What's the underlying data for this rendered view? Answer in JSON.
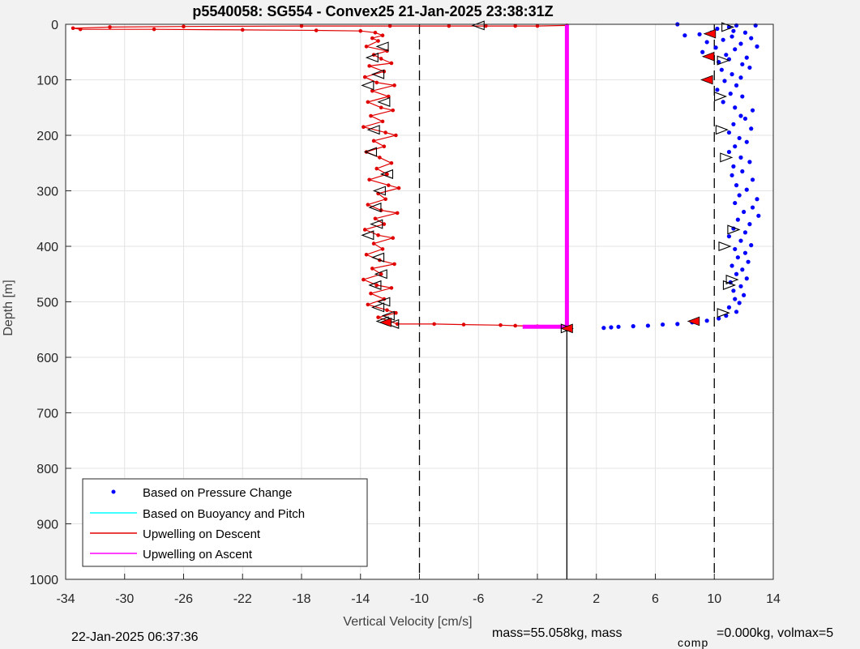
{
  "chart_data": {
    "type": "scatter",
    "title": "p5540058: SG554 - Convex25 21-Jan-2025 23:38:31Z",
    "xlabel": "Vertical Velocity [cm/s]",
    "ylabel": "Depth [m]",
    "xlim": [
      -34,
      14
    ],
    "ylim": [
      0,
      1000
    ],
    "y_reversed": true,
    "x_ticks": [
      -34,
      -30,
      -26,
      -22,
      -18,
      -14,
      -10,
      -6,
      -2,
      2,
      6,
      10,
      14
    ],
    "y_ticks": [
      0,
      100,
      200,
      300,
      400,
      500,
      600,
      700,
      800,
      900,
      1000
    ],
    "grid": true,
    "legend_position": "bottom-left",
    "reference_lines": {
      "dashed_x": [
        -10,
        10
      ],
      "solid_x": 0,
      "solid_depth_range": [
        545,
        1000
      ]
    },
    "series": [
      {
        "name": "Based on Pressure Change",
        "color": "#0000ff",
        "kind": "dots",
        "points": [
          [
            7.5,
            0
          ],
          [
            11.5,
            2
          ],
          [
            12.8,
            2
          ],
          [
            11,
            5
          ],
          [
            10.2,
            8
          ],
          [
            11.3,
            12
          ],
          [
            9.8,
            15
          ],
          [
            12.1,
            15
          ],
          [
            9,
            18
          ],
          [
            8,
            20
          ],
          [
            11.2,
            22
          ],
          [
            12.5,
            25
          ],
          [
            10.6,
            28
          ],
          [
            9.5,
            32
          ],
          [
            11.8,
            35
          ],
          [
            12.9,
            40
          ],
          [
            10.1,
            42
          ],
          [
            11.4,
            45
          ],
          [
            9.2,
            50
          ],
          [
            10.8,
            55
          ],
          [
            12.2,
            60
          ],
          [
            11,
            63
          ],
          [
            10.3,
            68
          ],
          [
            11.9,
            72
          ],
          [
            12.4,
            78
          ],
          [
            10.5,
            82
          ],
          [
            11.2,
            90
          ],
          [
            11.8,
            96
          ],
          [
            10.7,
            102
          ],
          [
            11.5,
            110
          ],
          [
            10.2,
            118
          ],
          [
            11.1,
            125
          ],
          [
            11.9,
            130
          ],
          [
            10.6,
            140
          ],
          [
            11.4,
            150
          ],
          [
            12.6,
            155
          ],
          [
            11.8,
            165
          ],
          [
            12.1,
            170
          ],
          [
            11.3,
            180
          ],
          [
            12.5,
            188
          ],
          [
            11,
            195
          ],
          [
            11.7,
            205
          ],
          [
            12.2,
            212
          ],
          [
            11.4,
            220
          ],
          [
            11,
            230
          ],
          [
            11.8,
            240
          ],
          [
            12.4,
            248
          ],
          [
            11.3,
            256
          ],
          [
            11.9,
            265
          ],
          [
            11.2,
            272
          ],
          [
            12.6,
            280
          ],
          [
            11.5,
            290
          ],
          [
            12.2,
            298
          ],
          [
            11.7,
            308
          ],
          [
            12.9,
            315
          ],
          [
            11.4,
            322
          ],
          [
            12.6,
            330
          ],
          [
            12,
            338
          ],
          [
            13,
            345
          ],
          [
            11.6,
            352
          ],
          [
            12.4,
            360
          ],
          [
            11.3,
            368
          ],
          [
            12.1,
            375
          ],
          [
            11,
            382
          ],
          [
            11.8,
            390
          ],
          [
            12.5,
            398
          ],
          [
            11.4,
            405
          ],
          [
            12.1,
            412
          ],
          [
            11.6,
            420
          ],
          [
            12.3,
            428
          ],
          [
            11.2,
            435
          ],
          [
            11.9,
            442
          ],
          [
            11.5,
            450
          ],
          [
            12.2,
            458
          ],
          [
            11.1,
            465
          ],
          [
            11.8,
            472
          ],
          [
            11.3,
            480
          ],
          [
            12,
            488
          ],
          [
            11.4,
            495
          ],
          [
            11.7,
            502
          ],
          [
            11,
            510
          ],
          [
            11.5,
            518
          ],
          [
            10.8,
            525
          ],
          [
            10.3,
            530
          ],
          [
            9.5,
            534
          ],
          [
            8.5,
            537
          ],
          [
            7.5,
            540
          ],
          [
            6.5,
            541
          ],
          [
            5.5,
            543
          ],
          [
            4.5,
            544
          ],
          [
            3.5,
            545
          ],
          [
            3,
            546
          ],
          [
            2.5,
            547
          ]
        ]
      },
      {
        "name": "Based on Buoyancy and Pitch",
        "color": "#00ffff",
        "kind": "line",
        "points": []
      },
      {
        "name": "Upwelling on Descent",
        "color": "#e00000",
        "kind": "line-dots",
        "points": [
          [
            0,
            2
          ],
          [
            -2,
            3
          ],
          [
            -3.5,
            3
          ],
          [
            -5.5,
            3
          ],
          [
            -8,
            3
          ],
          [
            -12,
            3
          ],
          [
            -18,
            3
          ],
          [
            -26,
            4
          ],
          [
            -31,
            5
          ],
          [
            -33.5,
            7
          ],
          [
            -33,
            9
          ],
          [
            -28,
            9
          ],
          [
            -22,
            10
          ],
          [
            -17,
            11
          ],
          [
            -14,
            12
          ],
          [
            -13,
            15
          ],
          [
            -12.5,
            20
          ],
          [
            -13.2,
            25
          ],
          [
            -12.8,
            30
          ],
          [
            -13.6,
            40
          ],
          [
            -12.2,
            48
          ],
          [
            -13.1,
            55
          ],
          [
            -12.6,
            62
          ],
          [
            -11.9,
            70
          ],
          [
            -13.4,
            75
          ],
          [
            -12.4,
            85
          ],
          [
            -13.7,
            95
          ],
          [
            -12.9,
            105
          ],
          [
            -11.7,
            110
          ],
          [
            -13.2,
            120
          ],
          [
            -12.1,
            130
          ],
          [
            -13.5,
            140
          ],
          [
            -12.6,
            150
          ],
          [
            -11.8,
            155
          ],
          [
            -13.3,
            165
          ],
          [
            -12.5,
            175
          ],
          [
            -13.8,
            185
          ],
          [
            -12.3,
            195
          ],
          [
            -11.6,
            200
          ],
          [
            -13.1,
            210
          ],
          [
            -12.4,
            220
          ],
          [
            -13.6,
            230
          ],
          [
            -12.7,
            240
          ],
          [
            -11.9,
            250
          ],
          [
            -12.9,
            260
          ],
          [
            -12.2,
            270
          ],
          [
            -13.4,
            280
          ],
          [
            -12.1,
            290
          ],
          [
            -11.4,
            295
          ],
          [
            -12.8,
            305
          ],
          [
            -12.3,
            315
          ],
          [
            -13.5,
            325
          ],
          [
            -12.6,
            335
          ],
          [
            -11.5,
            340
          ],
          [
            -13,
            350
          ],
          [
            -12.4,
            360
          ],
          [
            -13.7,
            370
          ],
          [
            -12.8,
            380
          ],
          [
            -11.8,
            385
          ],
          [
            -13.1,
            395
          ],
          [
            -12.5,
            405
          ],
          [
            -13.6,
            415
          ],
          [
            -12.7,
            425
          ],
          [
            -11.7,
            432
          ],
          [
            -13.2,
            440
          ],
          [
            -12.6,
            450
          ],
          [
            -13.8,
            460
          ],
          [
            -12.9,
            470
          ],
          [
            -11.9,
            475
          ],
          [
            -13.3,
            485
          ],
          [
            -12.4,
            495
          ],
          [
            -13.5,
            505
          ],
          [
            -12.2,
            515
          ],
          [
            -11.6,
            520
          ],
          [
            -12.8,
            528
          ],
          [
            -12,
            535
          ],
          [
            -11.5,
            540
          ],
          [
            -9,
            540
          ],
          [
            -7,
            541
          ],
          [
            -4.5,
            542
          ],
          [
            -3.5,
            543
          ],
          [
            -2,
            544
          ],
          [
            0,
            545
          ]
        ]
      },
      {
        "name": "Upwelling on Ascent",
        "color": "#ff00ff",
        "kind": "line",
        "points": [
          [
            0,
            0
          ],
          [
            0,
            545
          ],
          [
            -1,
            545
          ],
          [
            -3,
            545
          ]
        ]
      }
    ],
    "descent_markers": [
      [
        -6,
        2
      ],
      [
        -12.5,
        40
      ],
      [
        -13.2,
        60
      ],
      [
        -12.8,
        90
      ],
      [
        -13.5,
        110
      ],
      [
        -12.4,
        140
      ],
      [
        -13.1,
        190
      ],
      [
        -13.3,
        230
      ],
      [
        -12.2,
        270
      ],
      [
        -12.7,
        300
      ],
      [
        -13,
        330
      ],
      [
        -12.9,
        360
      ],
      [
        -13.5,
        380
      ],
      [
        -12.8,
        420
      ],
      [
        -12.6,
        450
      ],
      [
        -13,
        470
      ],
      [
        -12.4,
        500
      ],
      [
        -12.8,
        510
      ],
      [
        -12.1,
        525
      ],
      [
        -12.5,
        535
      ],
      [
        -11.8,
        540
      ]
    ],
    "ascent_markers": [
      [
        10.9,
        5
      ],
      [
        10.6,
        65
      ],
      [
        10.4,
        130
      ],
      [
        10.5,
        190
      ],
      [
        10.8,
        240
      ],
      [
        11.3,
        370
      ],
      [
        10.7,
        400
      ],
      [
        11.2,
        460
      ],
      [
        11,
        470
      ],
      [
        10.6,
        520
      ],
      [
        0,
        548
      ]
    ],
    "red_filled_markers": [
      [
        9.7,
        17
      ],
      [
        9.6,
        58
      ],
      [
        9.5,
        100
      ],
      [
        8.6,
        535
      ],
      [
        0,
        548
      ],
      [
        -12.3,
        537
      ]
    ]
  },
  "footer": {
    "timestamp": "22-Jan-2025 06:37:36",
    "mass_prefix": "mass=55.058kg, mass",
    "mass_subscript": "comp",
    "mass_suffix": "=0.000kg, volmax=5"
  },
  "colors": {
    "plot_bg": "#ffffff",
    "page_bg": "#f2f2f2",
    "grid": "#e3e3e3"
  }
}
